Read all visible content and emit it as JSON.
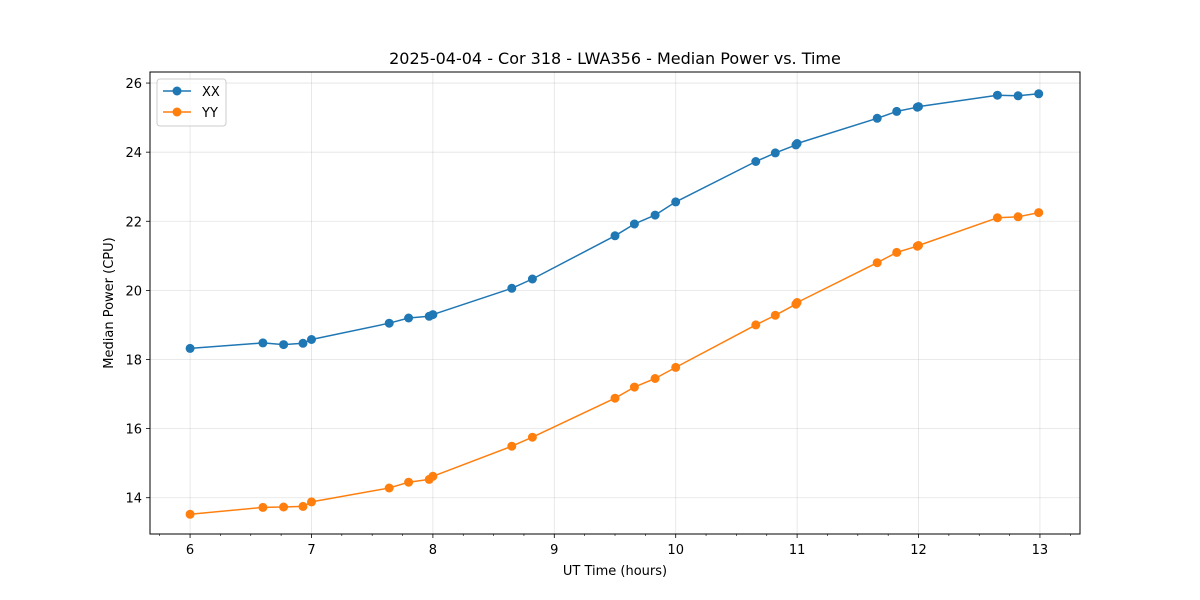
{
  "chart_data": {
    "type": "line",
    "title": "2025-04-04 - Cor 318 - LWA356 - Median Power vs. Time",
    "xlabel": "UT Time (hours)",
    "ylabel": "Median Power (CPU)",
    "xlim": [
      5.67,
      13.33
    ],
    "ylim": [
      12.95,
      26.32
    ],
    "xticks": [
      6,
      7,
      8,
      9,
      10,
      11,
      12,
      13
    ],
    "xtick_labels": [
      "6",
      "7",
      "8",
      "9",
      "10",
      "11",
      "12",
      "13"
    ],
    "x_minor_step": 0.25,
    "yticks": [
      14,
      16,
      18,
      20,
      22,
      24,
      26
    ],
    "ytick_labels": [
      "14",
      "16",
      "18",
      "20",
      "22",
      "24",
      "26"
    ],
    "grid": true,
    "legend": "upper-left",
    "x": [
      6.0,
      6.6,
      6.77,
      6.93,
      7.0,
      7.64,
      7.8,
      7.97,
      8.0,
      8.65,
      8.82,
      9.5,
      9.66,
      9.83,
      10.0,
      10.66,
      10.82,
      10.99,
      11.0,
      11.66,
      11.82,
      11.99,
      12.0,
      12.65,
      12.82,
      12.99
    ],
    "series": [
      {
        "name": "XX",
        "color": "#1f77b4",
        "values": [
          18.32,
          18.48,
          18.43,
          18.47,
          18.58,
          19.05,
          19.2,
          19.25,
          19.3,
          20.06,
          20.33,
          21.58,
          21.92,
          22.18,
          22.56,
          23.73,
          23.98,
          24.21,
          24.25,
          24.98,
          25.18,
          25.3,
          25.32,
          25.65,
          25.63,
          25.69
        ]
      },
      {
        "name": "YY",
        "color": "#ff7f0e",
        "values": [
          13.52,
          13.72,
          13.73,
          13.75,
          13.88,
          14.28,
          14.45,
          14.53,
          14.62,
          15.49,
          15.75,
          16.88,
          17.2,
          17.45,
          17.77,
          19.0,
          19.28,
          19.6,
          19.65,
          20.8,
          21.1,
          21.28,
          21.3,
          22.1,
          22.13,
          22.25
        ]
      }
    ]
  }
}
